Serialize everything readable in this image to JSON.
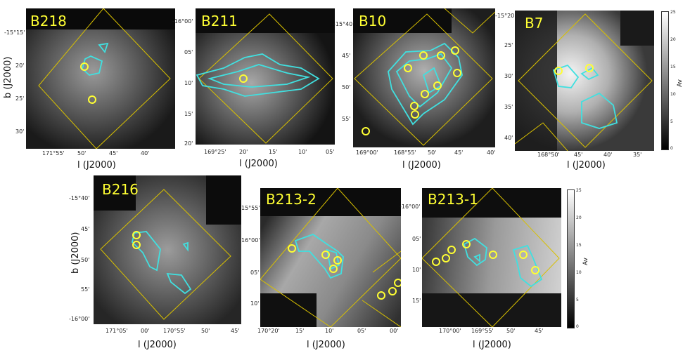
{
  "chart_data": [
    {
      "type": "heatmap",
      "title": "B218",
      "yticks": [
        "-15°15'",
        "20'",
        "25'",
        "30'"
      ],
      "xticks": [
        "171°55'",
        "50'",
        "45'",
        "40'"
      ],
      "xlabel": "l (J2000)",
      "ylabel": "b (J2000)",
      "sources": [
        {
          "l": 171.84,
          "b": -15.335
        },
        {
          "l": 171.825,
          "b": -15.42
        }
      ]
    },
    {
      "type": "heatmap",
      "title": "B211",
      "yticks": [
        "-16°00'",
        "05'",
        "10'",
        "15'",
        "20'"
      ],
      "xticks": [
        "169°25'",
        "20'",
        "15'",
        "10'",
        "05'"
      ],
      "xlabel": "l (J2000)",
      "ylabel": "",
      "sources": [
        {
          "l": 169.33,
          "b": -16.158
        }
      ]
    },
    {
      "type": "heatmap",
      "title": "B10",
      "yticks": [
        "-15°40'",
        "45'",
        "50'",
        "55'"
      ],
      "xticks": [
        "169°00'",
        "168°55'",
        "50'",
        "45'",
        "40'"
      ],
      "xlabel": "l (J2000)",
      "ylabel": "",
      "sources": [
        {
          "l": 168.955,
          "b": -15.79
        },
        {
          "l": 168.835,
          "b": -15.74
        },
        {
          "l": 168.865,
          "b": -15.855
        },
        {
          "l": 168.89,
          "b": -15.875
        },
        {
          "l": 168.905,
          "b": -15.89
        },
        {
          "l": 168.915,
          "b": -15.925
        },
        {
          "l": 168.775,
          "b": -15.72
        },
        {
          "l": 168.815,
          "b": -15.82
        },
        {
          "l": 169.0,
          "b": -15.955
        }
      ]
    },
    {
      "type": "heatmap",
      "title": "B7",
      "yticks": [
        "-15°20'",
        "25'",
        "30'",
        "35'",
        "40'"
      ],
      "xticks": [
        "168°50'",
        "45'",
        "40'",
        "35'"
      ],
      "xlabel": "l (J2000)",
      "ylabel": "",
      "colorbar": {
        "label": "Av",
        "ticks": [
          "25",
          "20",
          "15",
          "10",
          "5",
          "0"
        ],
        "range": [
          0,
          25
        ]
      },
      "sources": [
        {
          "l": 168.77,
          "b": -15.48
        },
        {
          "l": 168.855,
          "b": -15.49
        }
      ]
    },
    {
      "type": "heatmap",
      "title": "B216",
      "yticks": [
        "-15°40'",
        "45'",
        "50'",
        "55'",
        "-16°00'"
      ],
      "xticks": [
        "171°05'",
        "00'",
        "170°55'",
        "50'",
        "45'"
      ],
      "xlabel": "l (J2000)",
      "ylabel": "b (J2000)",
      "sources": [
        {
          "l": 171.0,
          "b": -15.775
        },
        {
          "l": 171.0,
          "b": -15.8
        }
      ]
    },
    {
      "type": "heatmap",
      "title": "B213-2",
      "yticks": [
        "15°55'",
        "16°00'",
        "05'",
        "10'"
      ],
      "xticks": [
        "170°20'",
        "15'",
        "10'",
        "05'",
        "00'"
      ],
      "xlabel": "l (J2000)",
      "ylabel": "",
      "sources": [
        {
          "l": 170.27,
          "b": -16.02
        },
        {
          "l": 170.175,
          "b": -16.04
        },
        {
          "l": 170.13,
          "b": -16.05
        },
        {
          "l": 170.04,
          "b": -16.14
        }
      ]
    },
    {
      "type": "heatmap",
      "title": "B213-1",
      "yticks": [
        "-16°00'",
        "05'",
        "10'",
        "15'"
      ],
      "xticks": [
        "170°00'",
        "169°55'",
        "50'",
        "45'"
      ],
      "xlabel": "l (J2000)",
      "ylabel": "",
      "colorbar": {
        "label": "Av",
        "ticks": [
          "25",
          "20",
          "15",
          "10",
          "5",
          "0"
        ],
        "range": [
          0,
          25
        ]
      },
      "sources": [
        {
          "l": 170.02,
          "b": -16.115
        },
        {
          "l": 170.0,
          "b": -16.11
        },
        {
          "l": 169.93,
          "b": -16.085
        },
        {
          "l": 169.78,
          "b": -16.09
        }
      ]
    }
  ],
  "colors": {
    "contour": "#40e0e0",
    "marker": "#ffff33",
    "box": "#d8c000",
    "title": "#ffff33"
  }
}
